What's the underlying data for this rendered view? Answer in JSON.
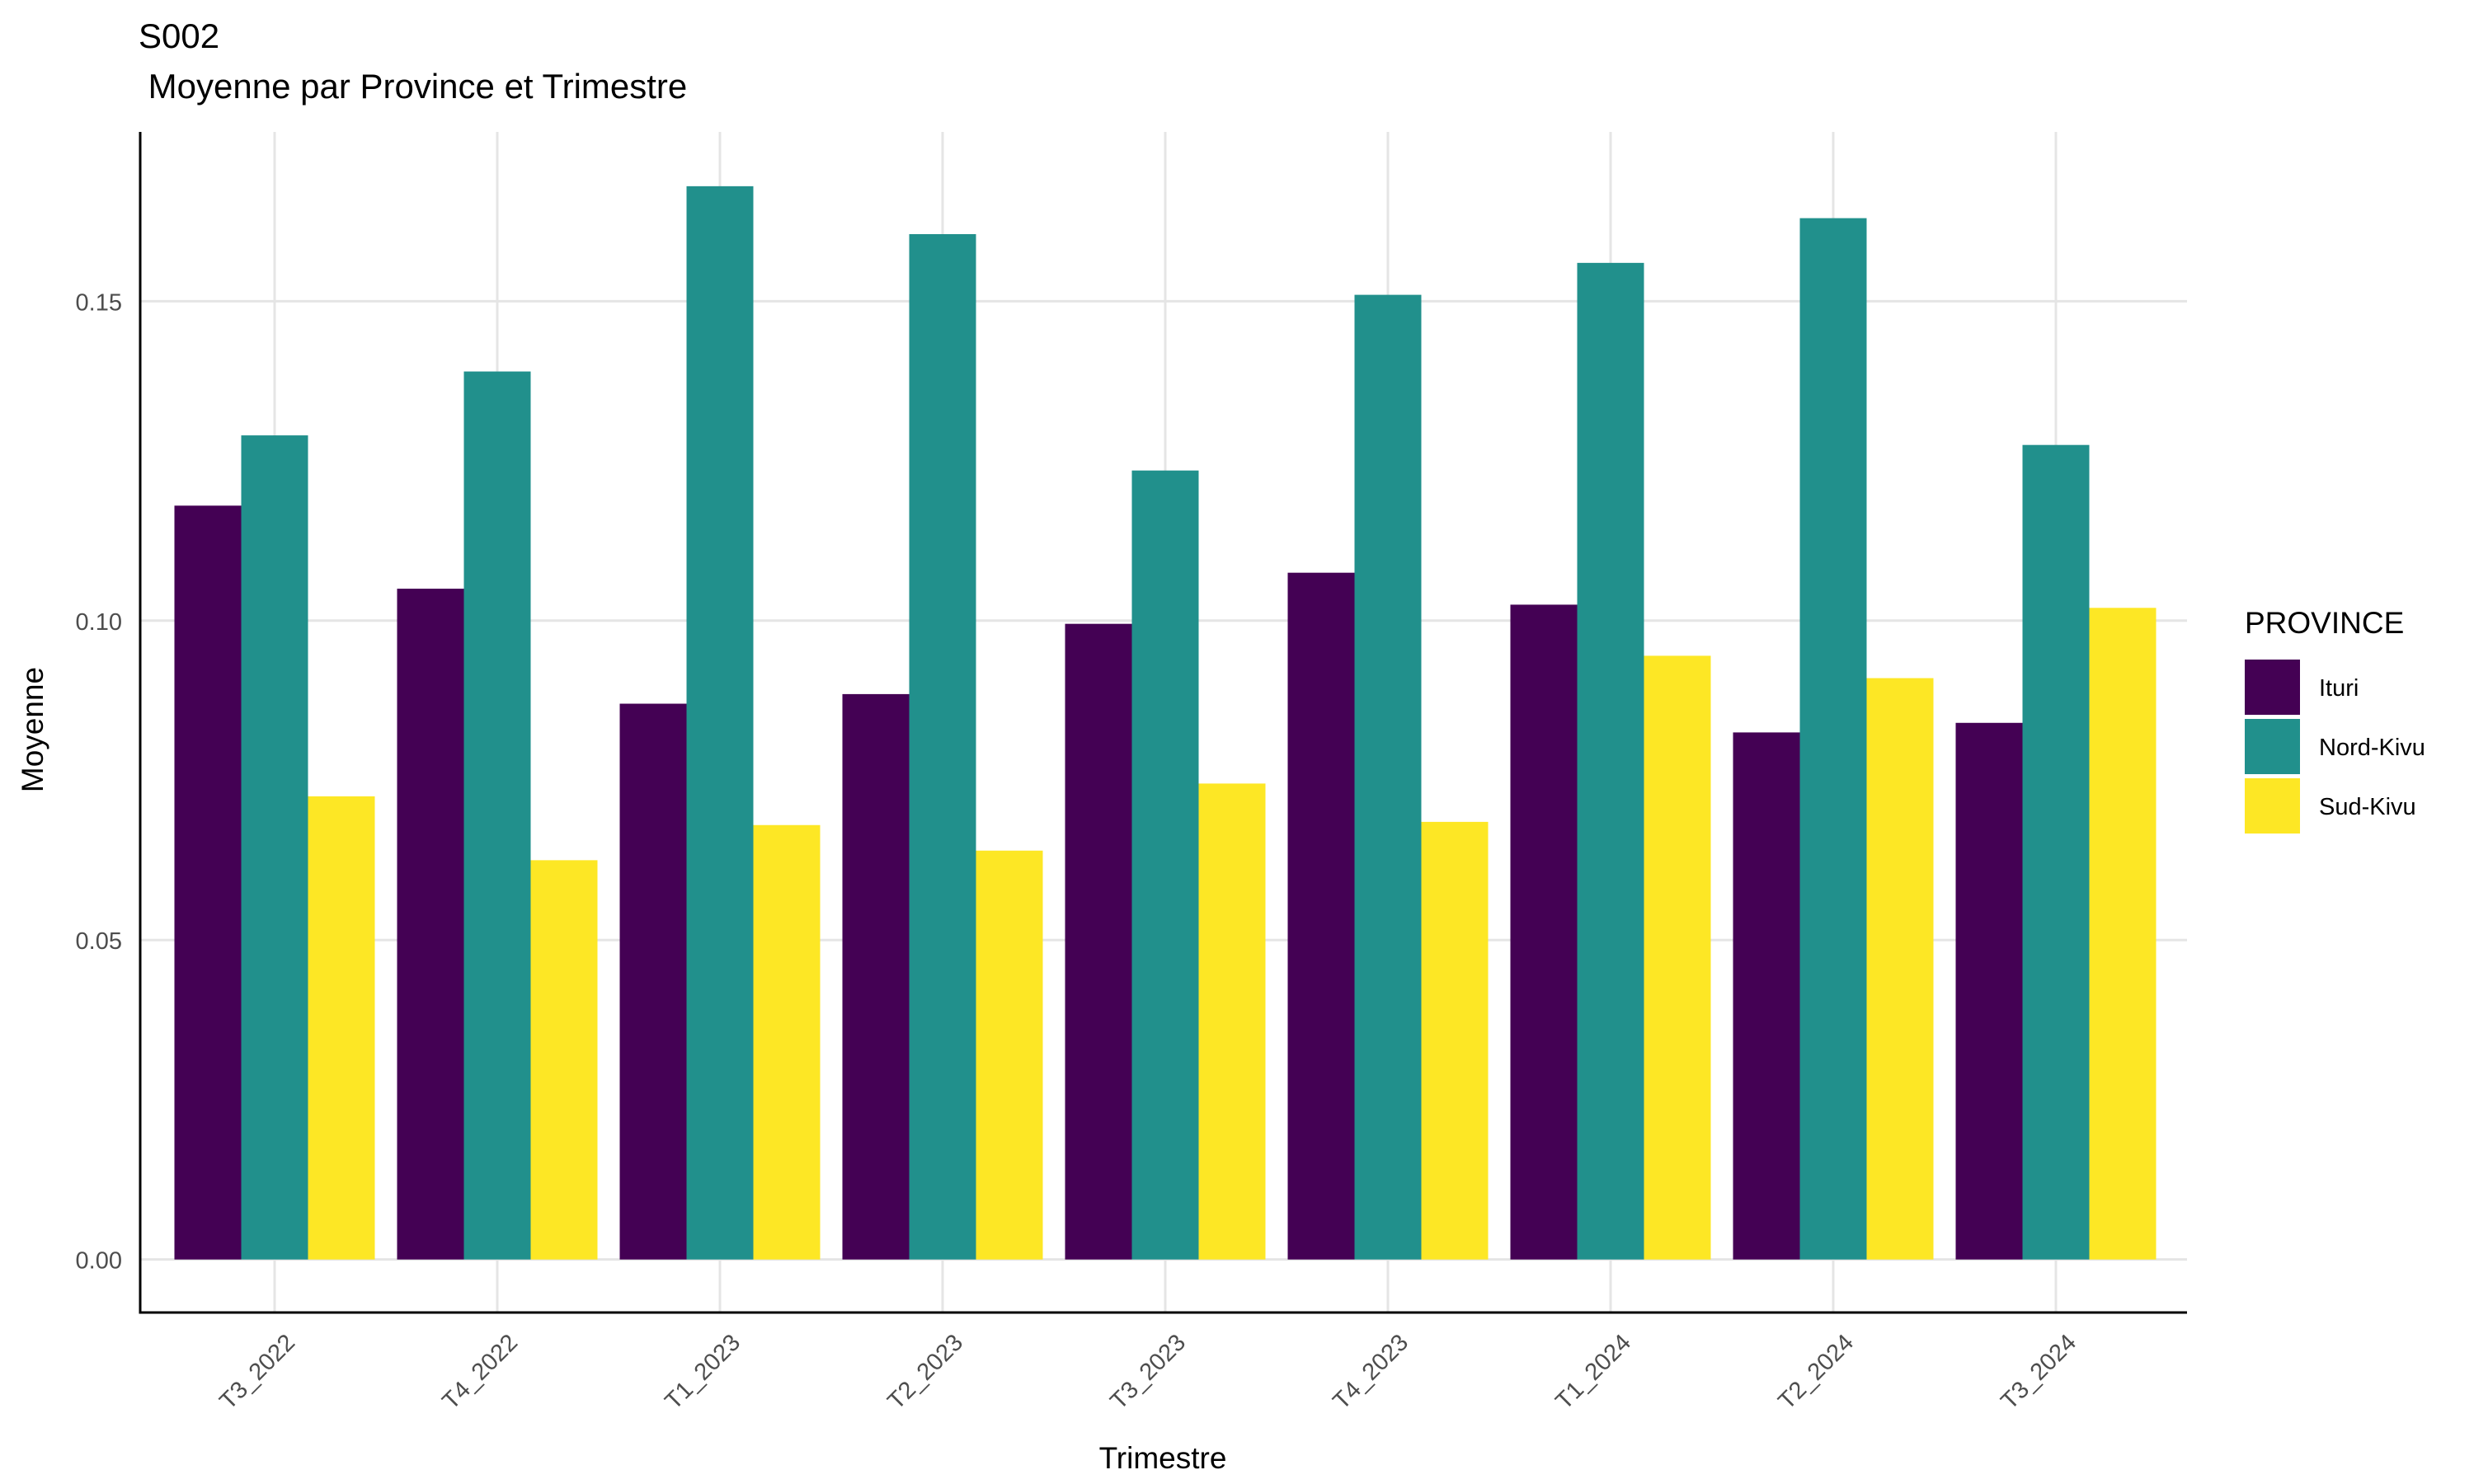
{
  "chart_data": {
    "type": "bar",
    "title": "S002",
    "subtitle": " Moyenne par Province et Trimestre",
    "xlabel": "Trimestre",
    "ylabel": "Moyenne",
    "ylim": [
      -0.0083,
      0.1765
    ],
    "yticks": [
      0.0,
      0.05,
      0.1,
      0.15
    ],
    "ytick_labels": [
      "0.00",
      "0.05",
      "0.10",
      "0.15"
    ],
    "grid": true,
    "legend": {
      "title": "PROVINCE",
      "placement": "right"
    },
    "categories": [
      "T3_2022",
      "T4_2022",
      "T1_2023",
      "T2_2023",
      "T3_2023",
      "T4_2023",
      "T1_2024",
      "T2_2024",
      "T3_2024"
    ],
    "series": [
      {
        "name": "Ituri",
        "color": "#440154",
        "values": [
          0.118,
          0.105,
          0.087,
          0.0885,
          0.0995,
          0.1075,
          0.1025,
          0.0825,
          0.084
        ]
      },
      {
        "name": "Nord-Kivu",
        "color": "#21908C",
        "values": [
          0.129,
          0.139,
          0.168,
          0.1605,
          0.1235,
          0.151,
          0.156,
          0.163,
          0.1275
        ]
      },
      {
        "name": "Sud-Kivu",
        "color": "#FDE725",
        "values": [
          0.0725,
          0.0625,
          0.068,
          0.064,
          0.0745,
          0.0685,
          0.0945,
          0.091,
          0.102
        ]
      }
    ]
  }
}
